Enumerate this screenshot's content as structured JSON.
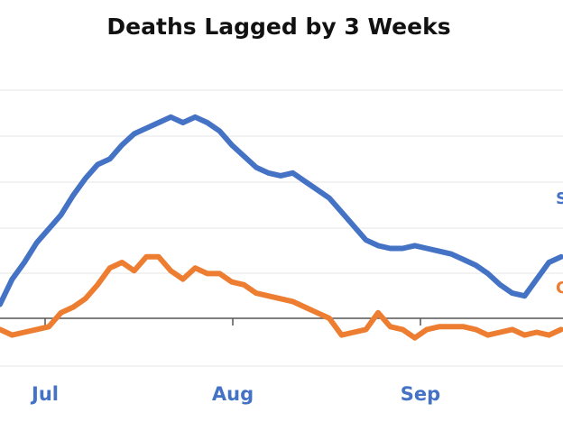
{
  "chart_data": {
    "type": "line",
    "title": "Deaths Lagged by 3 Weeks",
    "xlabel": "",
    "ylabel": "",
    "x_ticks": [
      "Jul",
      "Aug",
      "Sep"
    ],
    "grid": true,
    "legend": "none",
    "colors": {
      "blue": "#4472c4",
      "orange": "#ed7d31",
      "tick_text": "#4472c4",
      "grid": "#e5e5e5",
      "axis": "#555555"
    },
    "series": [
      {
        "name": "S",
        "color": "#4472c4",
        "label_text": "S",
        "x": [
          0,
          2,
          4,
          6,
          8,
          10,
          12,
          14,
          16,
          18,
          20,
          22,
          24,
          26,
          28,
          30,
          32,
          34,
          36,
          38,
          40,
          42,
          44,
          46,
          48,
          50,
          52,
          54,
          56,
          58,
          60,
          62,
          64,
          66,
          68,
          70,
          72,
          74,
          76,
          78,
          80,
          82,
          84,
          86,
          88,
          90,
          92
        ],
        "values": [
          5,
          14,
          20,
          27,
          32,
          37,
          44,
          50,
          55,
          57,
          62,
          66,
          68,
          70,
          72,
          70,
          72,
          70,
          67,
          62,
          58,
          54,
          52,
          51,
          52,
          49,
          46,
          43,
          38,
          33,
          28,
          26,
          25,
          25,
          26,
          25,
          24,
          23,
          21,
          19,
          16,
          12,
          9,
          8,
          14,
          20,
          22
        ]
      },
      {
        "name": "O",
        "color": "#ed7d31",
        "label_text": "O",
        "x": [
          0,
          2,
          4,
          6,
          8,
          10,
          12,
          14,
          16,
          18,
          20,
          22,
          24,
          26,
          28,
          30,
          32,
          34,
          36,
          38,
          40,
          42,
          44,
          46,
          48,
          50,
          52,
          54,
          56,
          58,
          60,
          62,
          64,
          66,
          68,
          70,
          72,
          74,
          76,
          78,
          80,
          82,
          84,
          86,
          88,
          90,
          92
        ],
        "values": [
          -4,
          -6,
          -5,
          -4,
          -3,
          2,
          4,
          7,
          12,
          18,
          20,
          17,
          22,
          22,
          17,
          14,
          18,
          16,
          16,
          13,
          12,
          9,
          8,
          7,
          6,
          4,
          2,
          0,
          -6,
          -5,
          -4,
          2,
          -3,
          -4,
          -7,
          -4,
          -3,
          -3,
          -3,
          -4,
          -6,
          -5,
          -4,
          -6,
          -5,
          -6,
          -4
        ]
      }
    ]
  }
}
